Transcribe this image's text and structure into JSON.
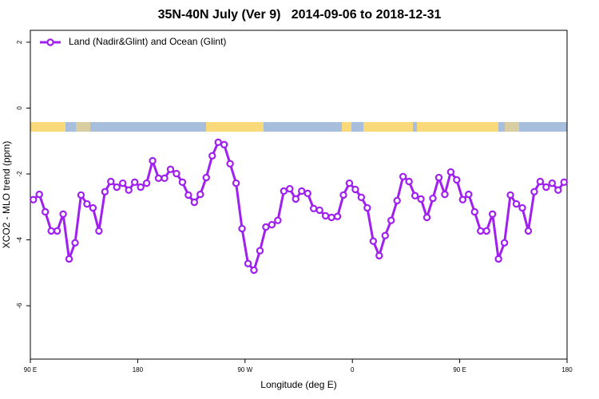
{
  "chart_data": {
    "type": "line",
    "title": "35N-40N July (Ver 9)   2014-09-06 to 2018-12-31",
    "x_label": "Longitude (deg E)",
    "y_label": "XCO2 - MLO trend (ppm)",
    "legend_position": "top-left",
    "xlim": [
      90,
      540
    ],
    "ylim": [
      -7.62,
      2.36
    ],
    "xticks": [
      {
        "value": 90,
        "label": "90 E"
      },
      {
        "value": 180,
        "label": "180"
      },
      {
        "value": 270,
        "label": "90 W"
      },
      {
        "value": 360,
        "label": "0"
      },
      {
        "value": 450,
        "label": "90 E"
      },
      {
        "value": 540,
        "label": "180"
      }
    ],
    "yticks": [
      2,
      0,
      -2,
      -4,
      -6
    ],
    "x": [
      92.5,
      97.5,
      102.5,
      107.5,
      112.5,
      117.5,
      122.5,
      127.5,
      132.5,
      137.5,
      142.5,
      147.5,
      152.5,
      157.5,
      162.5,
      167.5,
      172.5,
      177.5,
      182.5,
      187.5,
      192.5,
      197.5,
      202.5,
      207.5,
      212.5,
      217.5,
      222.5,
      227.5,
      232.5,
      237.5,
      242.5,
      247.5,
      252.5,
      257.5,
      262.5,
      267.5,
      272.5,
      277.5,
      282.5,
      287.5,
      292.5,
      297.5,
      302.5,
      307.5,
      312.5,
      317.5,
      322.5,
      327.5,
      332.5,
      337.5,
      342.5,
      347.5,
      352.5,
      357.5,
      362.5,
      367.5,
      372.5,
      377.5,
      382.5,
      387.5,
      392.5,
      397.5,
      402.5,
      407.5,
      412.5,
      417.5,
      422.5,
      427.5,
      432.5,
      437.5,
      442.5,
      447.5,
      452.5,
      457.5,
      462.5,
      467.5,
      472.5,
      477.5,
      482.5,
      487.5,
      492.5,
      497.5,
      502.5,
      507.5,
      512.5,
      517.5,
      522.5,
      527.5,
      532.5,
      537.5
    ],
    "series": [
      {
        "name": "Land (Nadir&Glint) and Ocean (Glint)",
        "color": "#a020f0",
        "values": [
          -2.78,
          -2.62,
          -3.15,
          -3.73,
          -3.73,
          -3.22,
          -4.58,
          -4.09,
          -2.64,
          -2.91,
          -3.03,
          -3.73,
          -2.54,
          -2.23,
          -2.4,
          -2.28,
          -2.49,
          -2.25,
          -2.4,
          -2.28,
          -1.6,
          -2.13,
          -2.13,
          -1.86,
          -1.99,
          -2.25,
          -2.64,
          -2.86,
          -2.62,
          -2.11,
          -1.45,
          -1.04,
          -1.11,
          -1.69,
          -2.28,
          -3.66,
          -4.72,
          -4.92,
          -4.33,
          -3.61,
          -3.54,
          -3.41,
          -2.52,
          -2.45,
          -2.76,
          -2.52,
          -2.59,
          -3.05,
          -3.1,
          -3.27,
          -3.32,
          -3.29,
          -2.64,
          -2.28,
          -2.47,
          -2.71,
          -3.03,
          -4.04,
          -4.48,
          -3.87,
          -3.41,
          -2.81,
          -2.08,
          -2.23,
          -2.66,
          -2.76,
          -3.32,
          -2.74,
          -2.11,
          -2.62,
          -1.94,
          -2.18,
          -2.78,
          -2.62,
          -3.15,
          -3.73,
          -3.73,
          -3.22,
          -4.58,
          -4.09,
          -2.64,
          -2.91,
          -3.03,
          -3.73,
          -2.54,
          -2.23,
          -2.4,
          -2.28,
          -2.49,
          -2.25
        ]
      }
    ]
  }
}
